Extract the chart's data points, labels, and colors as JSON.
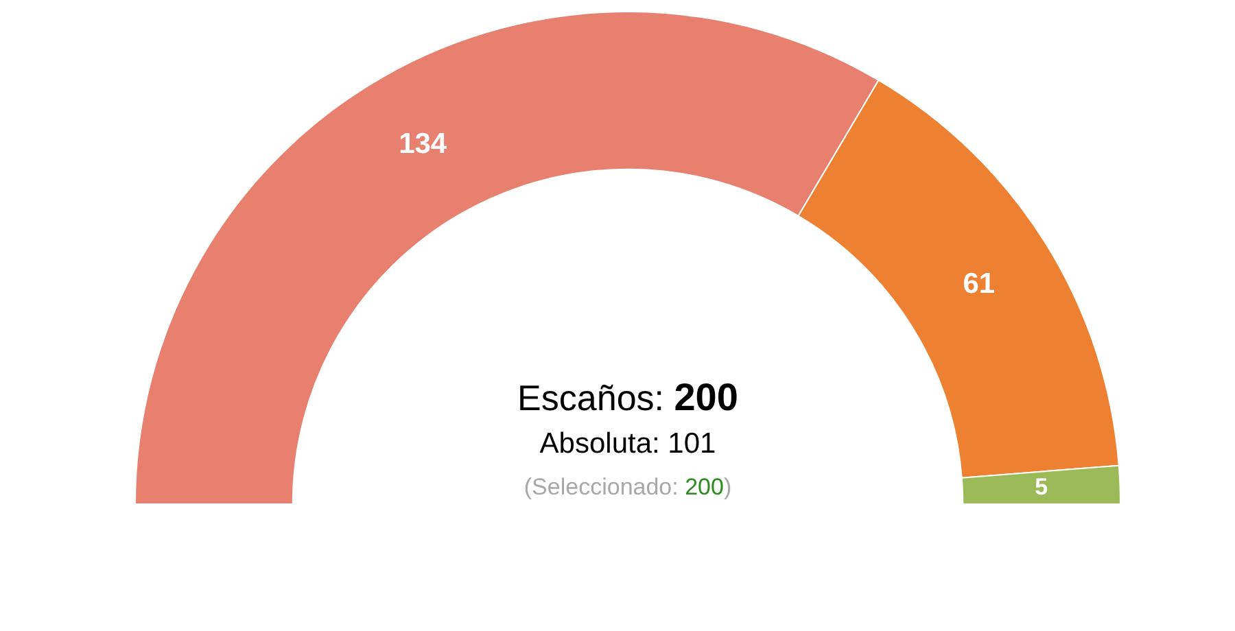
{
  "chart_data": {
    "type": "donut",
    "categories": [
      null,
      null,
      null
    ],
    "values": [
      134,
      61,
      5
    ],
    "colors": [
      "#e8806f",
      "#ee8032",
      "#9bbb59"
    ],
    "data_labels": true,
    "annotations": [
      "Escaños: 200",
      "Absoluta: 101",
      "(Seleccionado: 200)"
    ]
  }
}
